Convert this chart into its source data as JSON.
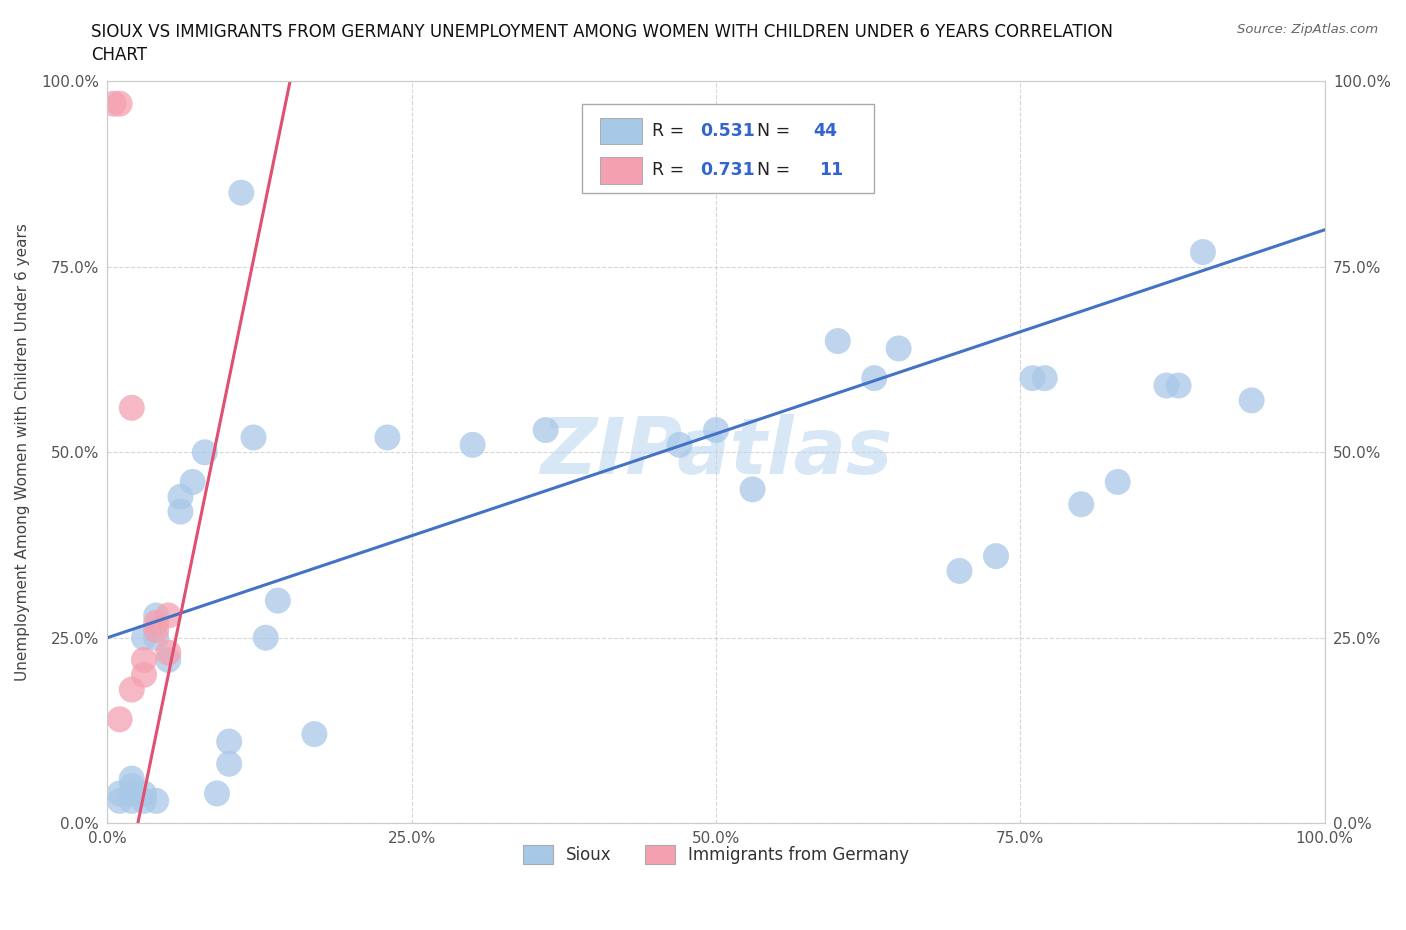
{
  "title_line1": "SIOUX VS IMMIGRANTS FROM GERMANY UNEMPLOYMENT AMONG WOMEN WITH CHILDREN UNDER 6 YEARS CORRELATION",
  "title_line2": "CHART",
  "source": "Source: ZipAtlas.com",
  "ylabel": "Unemployment Among Women with Children Under 6 years",
  "xmin": 0.0,
  "xmax": 1.0,
  "ymin": 0.0,
  "ymax": 1.0,
  "xtick_labels": [
    "0.0%",
    "25.0%",
    "50.0%",
    "75.0%",
    "100.0%"
  ],
  "xtick_vals": [
    0.0,
    0.25,
    0.5,
    0.75,
    1.0
  ],
  "ytick_labels": [
    "0.0%",
    "25.0%",
    "50.0%",
    "75.0%",
    "100.0%"
  ],
  "ytick_vals": [
    0.0,
    0.25,
    0.5,
    0.75,
    1.0
  ],
  "sioux_color": "#a8c8e8",
  "germany_color": "#f4a0b0",
  "trendline_sioux_color": "#4472c4",
  "trendline_germany_color": "#e05070",
  "sioux_R": "0.531",
  "sioux_N": "44",
  "germany_R": "0.731",
  "germany_N": "11",
  "watermark": "ZIPatlas",
  "sioux_trendline": [
    0.25,
    0.8
  ],
  "germany_trendline_slope": 8.0,
  "germany_trendline_intercept": -0.2,
  "sioux_x": [
    0.01,
    0.01,
    0.02,
    0.02,
    0.02,
    0.02,
    0.03,
    0.03,
    0.03,
    0.04,
    0.04,
    0.04,
    0.05,
    0.06,
    0.06,
    0.07,
    0.08,
    0.09,
    0.1,
    0.1,
    0.11,
    0.12,
    0.13,
    0.14,
    0.17,
    0.23,
    0.3,
    0.36,
    0.47,
    0.5,
    0.53,
    0.6,
    0.63,
    0.65,
    0.7,
    0.73,
    0.76,
    0.77,
    0.8,
    0.83,
    0.87,
    0.88,
    0.9,
    0.94
  ],
  "sioux_y": [
    0.03,
    0.04,
    0.03,
    0.04,
    0.05,
    0.06,
    0.03,
    0.04,
    0.25,
    0.25,
    0.28,
    0.03,
    0.22,
    0.42,
    0.44,
    0.46,
    0.5,
    0.04,
    0.08,
    0.11,
    0.85,
    0.52,
    0.25,
    0.3,
    0.12,
    0.52,
    0.51,
    0.53,
    0.51,
    0.53,
    0.45,
    0.65,
    0.6,
    0.64,
    0.34,
    0.36,
    0.6,
    0.6,
    0.43,
    0.46,
    0.59,
    0.59,
    0.77,
    0.57
  ],
  "germany_x": [
    0.005,
    0.01,
    0.01,
    0.02,
    0.02,
    0.03,
    0.03,
    0.04,
    0.04,
    0.05,
    0.05
  ],
  "germany_y": [
    0.97,
    0.97,
    0.14,
    0.18,
    0.56,
    0.2,
    0.22,
    0.26,
    0.27,
    0.23,
    0.28
  ]
}
